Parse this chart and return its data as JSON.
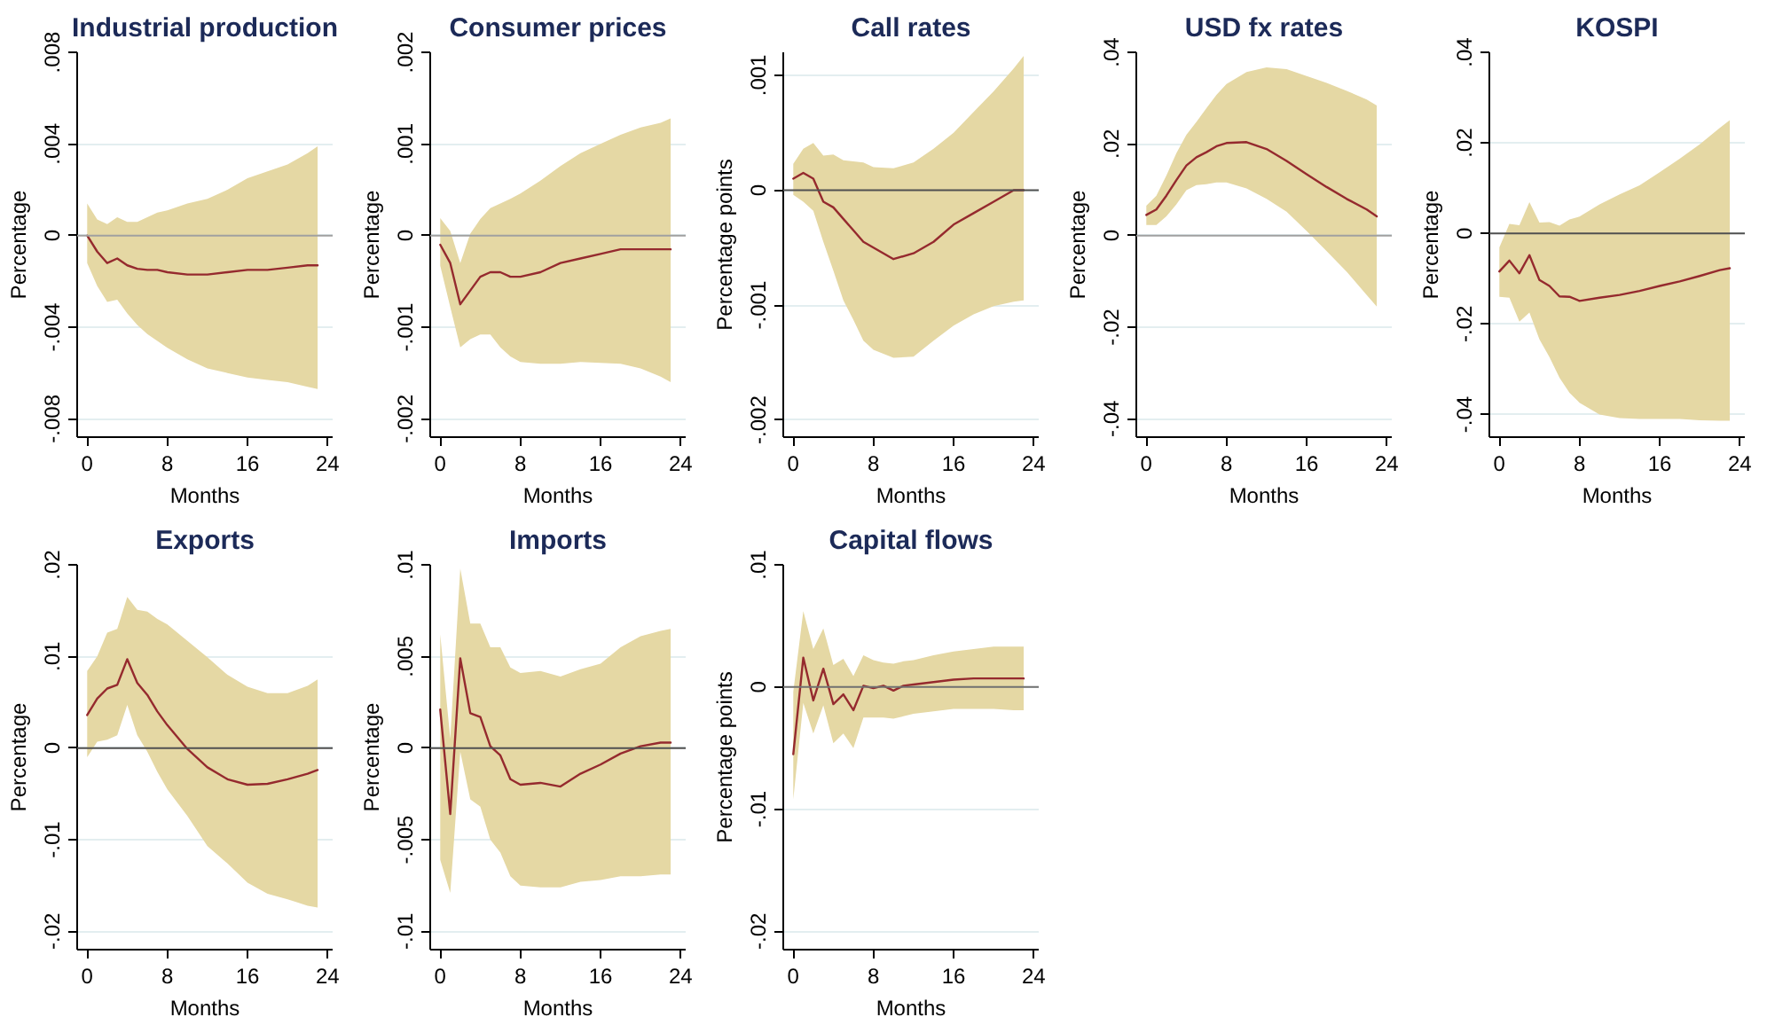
{
  "chart_data": [
    {
      "type": "line",
      "title": "Industrial production",
      "xlabel": "Months",
      "ylabel": "Percentage",
      "xlim": [
        -1,
        24.5
      ],
      "xticks": [
        0,
        8,
        16,
        24
      ],
      "ylim": [
        -0.0088,
        0.008
      ],
      "yticks": [
        {
          "value": -0.008,
          "label": "-.008"
        },
        {
          "value": -0.004,
          "label": "-.004"
        },
        {
          "value": 0,
          "label": "0"
        },
        {
          "value": 0.004,
          "label": ".004"
        },
        {
          "value": 0.008,
          "label": ".008"
        }
      ],
      "grid": "y",
      "ref_lines": [
        {
          "axis": "y",
          "value": 0,
          "color": "#a0a0a0"
        }
      ],
      "series": [
        {
          "color": "#952a2e",
          "x": [
            0,
            1,
            2,
            3,
            4,
            5,
            6,
            7,
            8,
            10,
            12,
            14,
            16,
            18,
            20,
            22,
            23
          ],
          "values": [
            0,
            -0.0007,
            -0.0012,
            -0.001,
            -0.0013,
            -0.00145,
            -0.0015,
            -0.0015,
            -0.0016,
            -0.0017,
            -0.0017,
            -0.0016,
            -0.0015,
            -0.0015,
            -0.0014,
            -0.0013,
            -0.0013
          ],
          "upper": [
            0.0014,
            0.0007,
            0.0005,
            0.0008,
            0.0006,
            0.0006,
            0.0008,
            0.001,
            0.0011,
            0.0014,
            0.0016,
            0.002,
            0.0025,
            0.0028,
            0.0031,
            0.0036,
            0.0039
          ],
          "lower": [
            -0.0012,
            -0.0022,
            -0.0029,
            -0.0028,
            -0.0034,
            -0.0039,
            -0.0043,
            -0.0046,
            -0.0049,
            -0.0054,
            -0.0058,
            -0.006,
            -0.0062,
            -0.0063,
            -0.0064,
            -0.0066,
            -0.0067
          ]
        }
      ]
    },
    {
      "type": "line",
      "title": "Consumer prices",
      "xlabel": "Months",
      "ylabel": "Percentage",
      "xlim": [
        -1,
        24.5
      ],
      "xticks": [
        0,
        8,
        16,
        24
      ],
      "ylim": [
        -0.0022,
        0.002
      ],
      "yticks": [
        {
          "value": -0.002,
          "label": "-.002"
        },
        {
          "value": -0.001,
          "label": "-.001"
        },
        {
          "value": 0,
          "label": "0"
        },
        {
          "value": 0.001,
          "label": ".001"
        },
        {
          "value": 0.002,
          "label": ".002"
        }
      ],
      "grid": "y",
      "ref_lines": [
        {
          "axis": "y",
          "value": 0,
          "color": "#a0a0a0"
        }
      ],
      "series": [
        {
          "color": "#952a2e",
          "x": [
            0,
            1,
            2,
            3,
            4,
            5,
            6,
            7,
            8,
            10,
            12,
            14,
            16,
            18,
            20,
            22,
            23
          ],
          "values": [
            -0.0001,
            -0.0003,
            -0.00075,
            -0.0006,
            -0.00045,
            -0.0004,
            -0.0004,
            -0.00045,
            -0.00045,
            -0.0004,
            -0.0003,
            -0.00025,
            -0.0002,
            -0.00015,
            -0.00015,
            -0.00015,
            -0.00015
          ],
          "upper": [
            0.00019,
            5e-05,
            -0.0003,
            2e-05,
            0.00018,
            0.0003,
            0.00035,
            0.0004,
            0.00046,
            0.0006,
            0.00076,
            0.0009,
            0.001,
            0.0011,
            0.00118,
            0.00123,
            0.00128
          ],
          "lower": [
            -0.00033,
            -0.00078,
            -0.00122,
            -0.00113,
            -0.00108,
            -0.00108,
            -0.00122,
            -0.00132,
            -0.00138,
            -0.0014,
            -0.0014,
            -0.00138,
            -0.00139,
            -0.0014,
            -0.00145,
            -0.00154,
            -0.0016
          ]
        }
      ]
    },
    {
      "type": "line",
      "title": "Call rates",
      "xlabel": "Months",
      "ylabel": "Percentage points",
      "xlim": [
        -1,
        24.5
      ],
      "xticks": [
        0,
        8,
        16,
        24
      ],
      "ylim": [
        -0.00215,
        0.0012
      ],
      "yticks": [
        {
          "value": -0.002,
          "label": "-.002"
        },
        {
          "value": -0.001,
          "label": "-.001"
        },
        {
          "value": 0,
          "label": "0"
        },
        {
          "value": 0.001,
          "label": ".001"
        }
      ],
      "grid": "y",
      "ref_lines": [
        {
          "axis": "y",
          "value": 0,
          "color": "#505050"
        }
      ],
      "series": [
        {
          "color": "#952a2e",
          "x": [
            0,
            1,
            2,
            3,
            4,
            5,
            6,
            7,
            8,
            10,
            12,
            14,
            16,
            18,
            20,
            22,
            23
          ],
          "values": [
            0.0001,
            0.00015,
            0.0001,
            -0.0001,
            -0.00015,
            -0.00025,
            -0.00035,
            -0.00045,
            -0.0005,
            -0.0006,
            -0.00055,
            -0.00045,
            -0.0003,
            -0.0002,
            -0.0001,
            0,
            0
          ],
          "upper": [
            0.00023,
            0.00036,
            0.00041,
            0.0003,
            0.00031,
            0.00026,
            0.00025,
            0.00024,
            0.0002,
            0.00019,
            0.00024,
            0.00036,
            0.0005,
            0.00068,
            0.00086,
            0.00106,
            0.00117
          ],
          "lower": [
            -4e-05,
            -0.0001,
            -0.00018,
            -0.00045,
            -0.0007,
            -0.00096,
            -0.00113,
            -0.00131,
            -0.00139,
            -0.00146,
            -0.00145,
            -0.00131,
            -0.00118,
            -0.00108,
            -0.00101,
            -0.00097,
            -0.00096
          ]
        }
      ]
    },
    {
      "type": "line",
      "title": "USD fx rates",
      "xlabel": "Months",
      "ylabel": "Percentage",
      "xlim": [
        -1,
        24.5
      ],
      "xticks": [
        0,
        8,
        16,
        24
      ],
      "ylim": [
        -0.044,
        0.04
      ],
      "yticks": [
        {
          "value": -0.04,
          "label": "-.04"
        },
        {
          "value": -0.02,
          "label": "-.02"
        },
        {
          "value": 0,
          "label": "0"
        },
        {
          "value": 0.02,
          "label": ".02"
        },
        {
          "value": 0.04,
          "label": ".04"
        }
      ],
      "grid": "y",
      "ref_lines": [
        {
          "axis": "y",
          "value": 0,
          "color": "#a0a0a0"
        }
      ],
      "series": [
        {
          "color": "#952a2e",
          "x": [
            0,
            1,
            2,
            3,
            4,
            5,
            6,
            7,
            8,
            10,
            12,
            14,
            16,
            18,
            20,
            22,
            23
          ],
          "values": [
            0.0045,
            0.0057,
            0.0087,
            0.0121,
            0.0153,
            0.0171,
            0.0182,
            0.0195,
            0.0202,
            0.0204,
            0.0189,
            0.0163,
            0.0134,
            0.0106,
            0.008,
            0.0057,
            0.0042
          ],
          "upper": [
            0.0065,
            0.0087,
            0.0131,
            0.018,
            0.022,
            0.0248,
            0.0278,
            0.0307,
            0.0331,
            0.0357,
            0.0367,
            0.0363,
            0.0348,
            0.0333,
            0.0316,
            0.0297,
            0.0284
          ],
          "lower": [
            0.0023,
            0.0023,
            0.0042,
            0.0068,
            0.0099,
            0.011,
            0.0112,
            0.0116,
            0.0116,
            0.0103,
            0.008,
            0.0052,
            0.001,
            -0.0034,
            -0.0079,
            -0.013,
            -0.0155
          ]
        }
      ]
    },
    {
      "type": "line",
      "title": "KOSPI",
      "xlabel": "Months",
      "ylabel": "Percentage",
      "xlim": [
        -1,
        24.5
      ],
      "xticks": [
        0,
        8,
        16,
        24
      ],
      "ylim": [
        -0.045,
        0.04
      ],
      "yticks": [
        {
          "value": -0.04,
          "label": "-.04"
        },
        {
          "value": -0.02,
          "label": "-.02"
        },
        {
          "value": 0,
          "label": "0"
        },
        {
          "value": 0.02,
          "label": ".02"
        },
        {
          "value": 0.04,
          "label": ".04"
        }
      ],
      "grid": "y",
      "ref_lines": [
        {
          "axis": "y",
          "value": 0,
          "color": "#505050"
        }
      ],
      "series": [
        {
          "color": "#952a2e",
          "x": [
            0,
            1,
            2,
            3,
            4,
            5,
            6,
            7,
            8,
            10,
            12,
            14,
            16,
            18,
            20,
            22,
            23
          ],
          "values": [
            -0.0084,
            -0.006,
            -0.0088,
            -0.0048,
            -0.0103,
            -0.0116,
            -0.0139,
            -0.014,
            -0.0149,
            -0.0142,
            -0.0136,
            -0.0127,
            -0.0116,
            -0.0106,
            -0.0094,
            -0.0081,
            -0.0077
          ],
          "upper": [
            -0.0031,
            0.0021,
            0.0018,
            0.0069,
            0.0024,
            0.0025,
            0.0017,
            0.0031,
            0.0037,
            0.0064,
            0.0086,
            0.0106,
            0.0135,
            0.0165,
            0.0197,
            0.0233,
            0.025
          ],
          "lower": [
            -0.014,
            -0.0142,
            -0.0195,
            -0.0175,
            -0.0234,
            -0.0273,
            -0.0319,
            -0.0352,
            -0.0374,
            -0.04,
            -0.0408,
            -0.041,
            -0.041,
            -0.041,
            -0.0413,
            -0.0414,
            -0.0414
          ]
        }
      ]
    },
    {
      "type": "line",
      "title": "Exports",
      "xlabel": "Months",
      "ylabel": "Percentage",
      "xlim": [
        -1,
        24.5
      ],
      "xticks": [
        0,
        8,
        16,
        24
      ],
      "ylim": [
        -0.022,
        0.02
      ],
      "yticks": [
        {
          "value": -0.02,
          "label": "-.02"
        },
        {
          "value": -0.01,
          "label": "-.01"
        },
        {
          "value": 0,
          "label": "0"
        },
        {
          "value": 0.01,
          "label": ".01"
        },
        {
          "value": 0.02,
          "label": ".02"
        }
      ],
      "grid": "y",
      "ref_lines": [
        {
          "axis": "y",
          "value": 0,
          "color": "#505050"
        }
      ],
      "series": [
        {
          "color": "#952a2e",
          "x": [
            0,
            1,
            2,
            3,
            4,
            5,
            6,
            7,
            8,
            10,
            12,
            14,
            16,
            18,
            20,
            22,
            23
          ],
          "values": [
            0.0036,
            0.0054,
            0.0065,
            0.0069,
            0.0097,
            0.0071,
            0.0058,
            0.004,
            0.0025,
            -0.0001,
            -0.0021,
            -0.0034,
            -0.004,
            -0.0039,
            -0.0034,
            -0.0028,
            -0.0024
          ],
          "upper": [
            0.0084,
            0.01,
            0.0126,
            0.013,
            0.0165,
            0.0151,
            0.0149,
            0.0141,
            0.0135,
            0.0117,
            0.0099,
            0.008,
            0.0067,
            0.006,
            0.006,
            0.0068,
            0.0075
          ],
          "lower": [
            -0.001,
            0.0007,
            0.0009,
            0.0014,
            0.0047,
            0.0014,
            -0.0004,
            -0.0026,
            -0.0045,
            -0.0074,
            -0.0107,
            -0.0126,
            -0.0147,
            -0.0159,
            -0.0165,
            -0.0172,
            -0.0174
          ]
        }
      ]
    },
    {
      "type": "line",
      "title": "Imports",
      "xlabel": "Months",
      "ylabel": "Percentage",
      "xlim": [
        -1,
        24.5
      ],
      "xticks": [
        0,
        8,
        16,
        24
      ],
      "ylim": [
        -0.011,
        0.01
      ],
      "yticks": [
        {
          "value": -0.01,
          "label": "-.01"
        },
        {
          "value": -0.005,
          "label": "-.005"
        },
        {
          "value": 0,
          "label": "0"
        },
        {
          "value": 0.005,
          "label": ".005"
        },
        {
          "value": 0.01,
          "label": ".01"
        }
      ],
      "grid": "y",
      "ref_lines": [
        {
          "axis": "y",
          "value": 0,
          "color": "#505050"
        }
      ],
      "series": [
        {
          "color": "#952a2e",
          "x": [
            0,
            1,
            2,
            3,
            4,
            5,
            6,
            7,
            8,
            10,
            12,
            14,
            16,
            18,
            20,
            22,
            23
          ],
          "values": [
            0.0021,
            -0.0036,
            0.0049,
            0.0019,
            0.0017,
            0.0001,
            -0.0004,
            -0.0017,
            -0.002,
            -0.0019,
            -0.0021,
            -0.0014,
            -0.0009,
            -0.0003,
            0.0001,
            0.0003,
            0.0003
          ],
          "upper": [
            0.0062,
            0.0005,
            0.0098,
            0.0068,
            0.0068,
            0.0055,
            0.0055,
            0.0044,
            0.0041,
            0.0042,
            0.0039,
            0.0043,
            0.0046,
            0.0055,
            0.0061,
            0.0064,
            0.0065
          ],
          "lower": [
            -0.0061,
            -0.0079,
            -0.0002,
            -0.0028,
            -0.0032,
            -0.005,
            -0.0057,
            -0.007,
            -0.0075,
            -0.0076,
            -0.0076,
            -0.0073,
            -0.0072,
            -0.007,
            -0.007,
            -0.0069,
            -0.0069
          ]
        }
      ]
    },
    {
      "type": "line",
      "title": "Capital flows",
      "xlabel": "Months",
      "ylabel": "Percentage points",
      "xlim": [
        -1,
        24.5
      ],
      "xticks": [
        0,
        8,
        16,
        24
      ],
      "ylim": [
        -0.0215,
        0.01
      ],
      "yticks": [
        {
          "value": -0.02,
          "label": "-.02"
        },
        {
          "value": -0.01,
          "label": "-.01"
        },
        {
          "value": 0,
          "label": "0"
        },
        {
          "value": 0.01,
          "label": ".01"
        }
      ],
      "grid": "y",
      "ref_lines": [
        {
          "axis": "y",
          "value": 0,
          "color": "#707070"
        }
      ],
      "series": [
        {
          "color": "#952a2e",
          "x": [
            0,
            1,
            2,
            3,
            4,
            5,
            6,
            7,
            8,
            9,
            10,
            11,
            12,
            14,
            16,
            18,
            20,
            22,
            23
          ],
          "values": [
            -0.0055,
            0.0024,
            -0.0011,
            0.0015,
            -0.0014,
            -0.0006,
            -0.0019,
            0.0001,
            -0.0001,
            0.0001,
            -0.0003,
            0.0001,
            0.0002,
            0.0004,
            0.0006,
            0.0007,
            0.0007,
            0.0007,
            0.0007
          ],
          "upper": [
            -0.0004,
            0.0062,
            0.0031,
            0.0048,
            0.0018,
            0.0023,
            0.0009,
            0.0026,
            0.0022,
            0.002,
            0.0019,
            0.0021,
            0.0022,
            0.0026,
            0.0029,
            0.0031,
            0.0033,
            0.0033,
            0.0033
          ],
          "lower": [
            -0.0092,
            -0.0013,
            -0.0038,
            -0.0015,
            -0.0046,
            -0.0038,
            -0.005,
            -0.0025,
            -0.0025,
            -0.0025,
            -0.0026,
            -0.0024,
            -0.0022,
            -0.002,
            -0.0018,
            -0.0018,
            -0.0018,
            -0.0019,
            -0.0019
          ]
        }
      ]
    }
  ]
}
